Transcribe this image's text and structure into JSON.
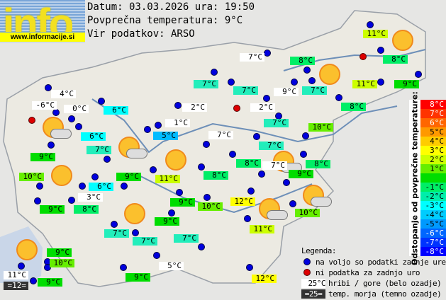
{
  "logo": {
    "text": "info",
    "url": "www.informacije.si"
  },
  "header": {
    "date_line": "Datum: 03.03.2026 ura: 19:50",
    "avg_line": "Povprečna temperatura: 9°C",
    "source_line": "Vir podatkov: ARSO"
  },
  "stations": [
    {
      "temp": "11°C",
      "bg": "#ccff00"
    },
    {
      "temp": "8°C",
      "bg": "#00ee66"
    },
    {
      "temp": "8°C",
      "bg": "#00ee66"
    },
    {
      "temp": "7°C",
      "bg": "#22eebb"
    },
    {
      "temp": "9°C",
      "bg": "#ffffff"
    },
    {
      "temp": "11°C",
      "bg": "#ccff00"
    },
    {
      "temp": "9°C",
      "bg": "#00dd00"
    },
    {
      "temp": "8°C",
      "bg": "#00ee66"
    },
    {
      "temp": "7°C",
      "bg": "#ffffff"
    },
    {
      "temp": "7°C",
      "bg": "#22eebb"
    },
    {
      "temp": "7°C",
      "bg": "#22eebb"
    },
    {
      "temp": "2°C",
      "bg": "#ffffff"
    },
    {
      "temp": "2°C",
      "bg": "#ffffff"
    },
    {
      "temp": "7°C",
      "bg": "#22eebb"
    },
    {
      "temp": "1°C",
      "bg": "#ffffff"
    },
    {
      "temp": "5°C",
      "bg": "#00bbff"
    },
    {
      "temp": "7°C",
      "bg": "#ffffff"
    },
    {
      "temp": "7°C",
      "bg": "#22eebb"
    },
    {
      "temp": "10°C",
      "bg": "#66ee00"
    },
    {
      "temp": "8°C",
      "bg": "#00ee66"
    },
    {
      "temp": "7°C",
      "bg": "#ffffff"
    },
    {
      "temp": "8°C",
      "bg": "#00ee66"
    },
    {
      "temp": "9°C",
      "bg": "#00dd00"
    },
    {
      "temp": "8°C",
      "bg": "#00ee66"
    },
    {
      "temp": "11°C",
      "bg": "#ccff00"
    },
    {
      "temp": "9°C",
      "bg": "#00dd00"
    },
    {
      "temp": "10°C",
      "bg": "#66ee00"
    },
    {
      "temp": "12°C",
      "bg": "#ffff00"
    },
    {
      "temp": "10°C",
      "bg": "#66ee00"
    },
    {
      "temp": "9°C",
      "bg": "#00dd00"
    },
    {
      "temp": "11°C",
      "bg": "#ccff00"
    },
    {
      "temp": "7°C",
      "bg": "#22eebb"
    },
    {
      "temp": "7°C",
      "bg": "#22eebb"
    },
    {
      "temp": "7°C",
      "bg": "#22eebb"
    },
    {
      "temp": "5°C",
      "bg": "#ffffff"
    },
    {
      "temp": "9°C",
      "bg": "#00dd00"
    },
    {
      "temp": "12°C",
      "bg": "#ffff00"
    },
    {
      "temp": "9°C",
      "bg": "#00dd00"
    },
    {
      "temp": "3°C",
      "bg": "#ffffff"
    },
    {
      "temp": "8°C",
      "bg": "#00ee66"
    },
    {
      "temp": "6°C",
      "bg": "#00ffff"
    },
    {
      "temp": "10°C",
      "bg": "#66ee00"
    },
    {
      "temp": "9°C",
      "bg": "#00dd00"
    },
    {
      "temp": "9°C",
      "bg": "#00dd00"
    },
    {
      "temp": "7°C",
      "bg": "#22eebb"
    },
    {
      "temp": "6°C",
      "bg": "#00ffff"
    },
    {
      "temp": "6°C",
      "bg": "#00ffff"
    },
    {
      "temp": "4°C",
      "bg": "#ffffff"
    },
    {
      "temp": "-6°C",
      "bg": "#ffffff"
    },
    {
      "temp": "0°C",
      "bg": "#ffffff"
    },
    {
      "temp": "9°C",
      "bg": "#00dd00"
    },
    {
      "temp": "10°C",
      "bg": "#66ee00"
    },
    {
      "temp": "9°C",
      "bg": "#00dd00"
    },
    {
      "temp": "11°C",
      "bg": "#ffffff"
    }
  ],
  "sea_temp": "=12=",
  "missing_station_count": 3,
  "weather_icons": [
    "sun",
    "sun",
    "sun",
    "sun",
    "sun",
    "sun",
    "sun-cloud",
    "sun-cloud",
    "sun-cloud",
    "sun-cloud",
    "sun-cloud"
  ],
  "scale": {
    "title": "Odstopanje od povprečne temperature:",
    "cells": [
      {
        "label": "8°C",
        "color": "#ff0000",
        "fg": "#fff"
      },
      {
        "label": "7°C",
        "color": "#ff3300",
        "fg": "#fff"
      },
      {
        "label": "6°C",
        "color": "#ff6600",
        "fg": "#fff"
      },
      {
        "label": "5°C",
        "color": "#ff9900",
        "fg": "#000"
      },
      {
        "label": "4°C",
        "color": "#ffcc00",
        "fg": "#000"
      },
      {
        "label": "3°C",
        "color": "#ffff00",
        "fg": "#000"
      },
      {
        "label": "2°C",
        "color": "#ccff00",
        "fg": "#000"
      },
      {
        "label": "1°C",
        "color": "#66ee00",
        "fg": "#000"
      },
      {
        "label": "",
        "color": "#00dd00",
        "fg": "#000"
      },
      {
        "label": "-1°C",
        "color": "#00ee66",
        "fg": "#000"
      },
      {
        "label": "-2°C",
        "color": "#00eeaa",
        "fg": "#000"
      },
      {
        "label": "-3°C",
        "color": "#00ffff",
        "fg": "#000"
      },
      {
        "label": "-4°C",
        "color": "#00ccff",
        "fg": "#000"
      },
      {
        "label": "-5°C",
        "color": "#0099ff",
        "fg": "#000"
      },
      {
        "label": "-6°C",
        "color": "#0066ff",
        "fg": "#fff"
      },
      {
        "label": "-7°C",
        "color": "#0033ff",
        "fg": "#fff"
      },
      {
        "label": "-8°C",
        "color": "#0000ff",
        "fg": "#fff"
      }
    ]
  },
  "legend": {
    "title": "Legenda:",
    "available": "na voljo so podatki zadnje ure",
    "missing": "ni podatka za zadnjo uro",
    "mountain_sample": "25°C",
    "mountain_text": "hribi / gore (belo ozadje)",
    "sea_sample": "=25=",
    "sea_text": "temp. morja (temno ozadje)"
  }
}
